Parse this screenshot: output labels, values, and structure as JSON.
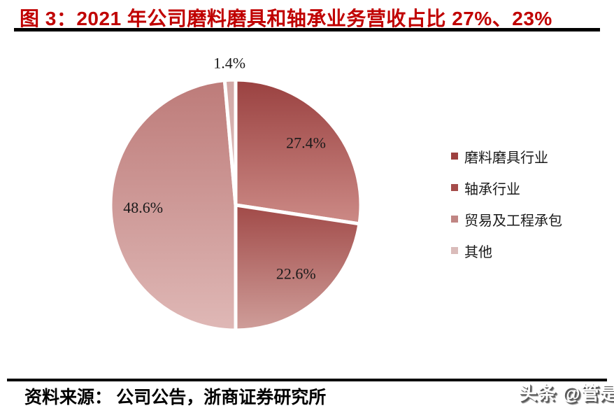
{
  "header": {
    "title": "图 3：2021 年公司磨料磨具和轴承业务营收占比 27%、23%",
    "accent_color": "#c00000"
  },
  "chart_data": {
    "type": "pie",
    "title": "图 3：2021 年公司磨料磨具和轴承业务营收占比 27%、23%",
    "categories": [
      "磨料磨具行业",
      "轴承行业",
      "贸易及工程承包",
      "其他"
    ],
    "values": [
      27.4,
      22.6,
      48.6,
      1.4
    ],
    "labels": [
      "27.4%",
      "22.6%",
      "48.6%",
      "1.4%"
    ],
    "unit": "%",
    "start_angle_deg": 0,
    "direction": "clockwise",
    "legend_position": "right",
    "gap_color": "#ffffff",
    "slice_gradients": [
      {
        "top": "#9a4140",
        "bottom": "#cc8a86"
      },
      {
        "top": "#a14a48",
        "bottom": "#cf9e9a"
      },
      {
        "top": "#bd7b79",
        "bottom": "#dfb8b6"
      },
      {
        "top": "#d2a7a5",
        "bottom": "#e0c1bf"
      }
    ],
    "legend_colors": [
      "#9d403f",
      "#a54c4a",
      "#c08583",
      "#dabcba"
    ]
  },
  "footer": {
    "source_label": "资料来源： 公司公告，浙商证券研究所"
  },
  "watermark": {
    "text": "头条 @管是"
  }
}
